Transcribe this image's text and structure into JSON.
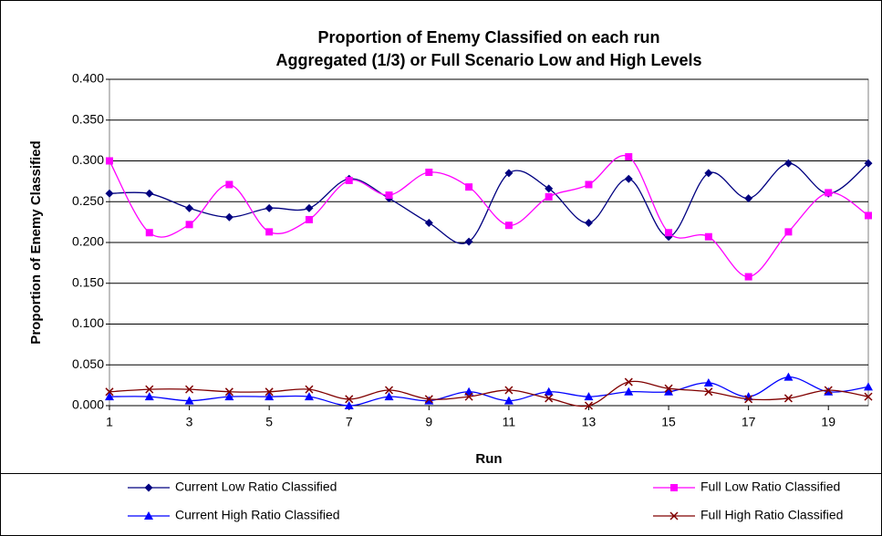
{
  "chart_data": {
    "type": "line",
    "title": [
      "Proportion of Enemy Classified on each run",
      "Aggregated (1/3) or Full Scenario Low and High Levels"
    ],
    "x_label": "Run",
    "y_label": "Proportion of Enemy Classified",
    "x": [
      1,
      2,
      3,
      4,
      5,
      6,
      7,
      8,
      9,
      10,
      11,
      12,
      13,
      14,
      15,
      16,
      17,
      18,
      19,
      20
    ],
    "xlim": [
      1,
      20
    ],
    "xticks": [
      1,
      3,
      5,
      7,
      9,
      11,
      13,
      15,
      17,
      19
    ],
    "ylim": [
      0,
      0.4
    ],
    "yticks": [
      {
        "value": 0,
        "label": "0.000"
      },
      {
        "value": 0.05,
        "label": "0.050"
      },
      {
        "value": 0.1,
        "label": "0.100"
      },
      {
        "value": 0.15,
        "label": "0.150"
      },
      {
        "value": 0.2,
        "label": "0.200"
      },
      {
        "value": 0.25,
        "label": "0.250"
      },
      {
        "value": 0.3,
        "label": "0.300"
      },
      {
        "value": 0.35,
        "label": "0.350"
      },
      {
        "value": 0.4,
        "label": "0.400"
      }
    ],
    "grid": true,
    "smooth": true,
    "series": [
      {
        "name": "Current Low Ratio Classified",
        "color": "#000080",
        "marker": "diamond",
        "values": [
          0.26,
          0.26,
          0.242,
          0.231,
          0.242,
          0.242,
          0.278,
          0.254,
          0.224,
          0.201,
          0.285,
          0.266,
          0.224,
          0.278,
          0.207,
          0.285,
          0.254,
          0.297,
          0.26,
          0.297
        ]
      },
      {
        "name": "Full Low Ratio Classified",
        "color": "#FF00FF",
        "marker": "square",
        "values": [
          0.3,
          0.212,
          0.222,
          0.271,
          0.213,
          0.228,
          0.276,
          0.258,
          0.286,
          0.268,
          0.221,
          0.256,
          0.271,
          0.305,
          0.212,
          0.207,
          0.158,
          0.213,
          0.261,
          0.233
        ]
      },
      {
        "name": "Current High Ratio Classified",
        "color": "#0000FF",
        "marker": "triangle",
        "values": [
          0.011,
          0.011,
          0.006,
          0.011,
          0.011,
          0.011,
          0.0,
          0.011,
          0.006,
          0.017,
          0.006,
          0.017,
          0.011,
          0.017,
          0.017,
          0.028,
          0.011,
          0.035,
          0.017,
          0.023
        ]
      },
      {
        "name": "Full High Ratio Classified",
        "color": "#800000",
        "marker": "x",
        "values": [
          0.017,
          0.02,
          0.02,
          0.017,
          0.017,
          0.02,
          0.008,
          0.019,
          0.008,
          0.011,
          0.019,
          0.009,
          0.0,
          0.029,
          0.021,
          0.017,
          0.008,
          0.009,
          0.019,
          0.011
        ]
      }
    ]
  }
}
